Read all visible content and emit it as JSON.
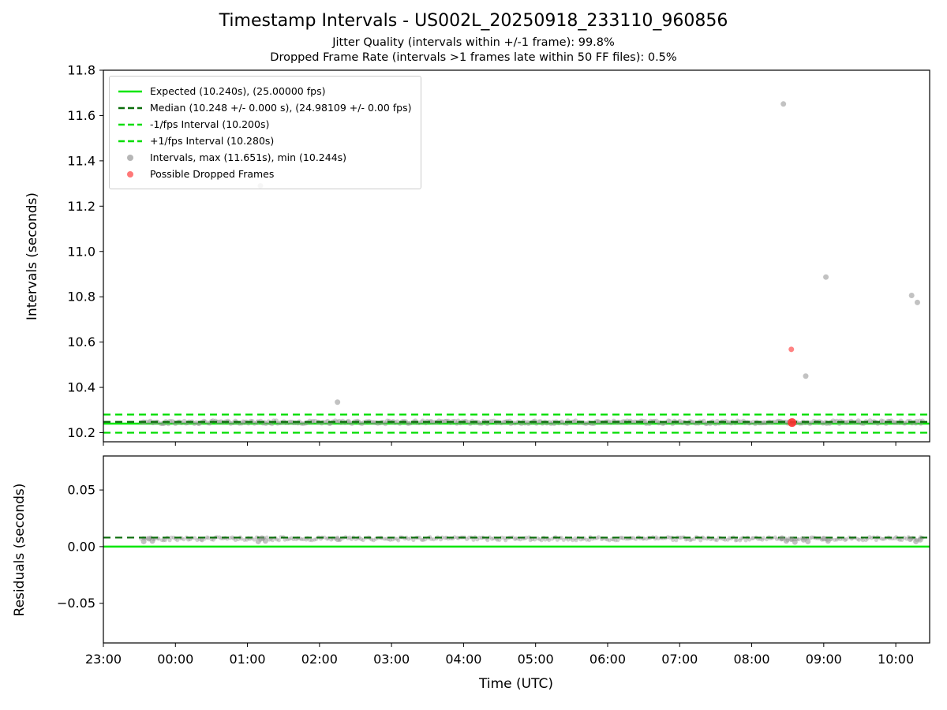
{
  "title": "Timestamp Intervals - US002L_20250918_233110_960856",
  "subtitles": {
    "jitter": "Jitter Quality (intervals within +/-1 frame): 99.8%",
    "dropped": "Dropped Frame Rate (intervals >1 frames late within 50 FF files): 0.5%"
  },
  "colors": {
    "expected_green": "#00e600",
    "fps_band_green": "#00dd00",
    "median_dark_green": "#0a6d0a",
    "interval_gray": "#8f8f8f",
    "dropped_red": "#ff3030"
  },
  "legend": [
    {
      "label": "Expected (10.240s), (25.00000 fps)",
      "swatch": "line-solid",
      "color": "#00e600"
    },
    {
      "label": "Median (10.248 +/- 0.000 s), (24.98109 +/- 0.00 fps)",
      "swatch": "line-dashed",
      "color": "#0a6d0a"
    },
    {
      "label": "-1/fps Interval (10.200s)",
      "swatch": "line-dashed",
      "color": "#00dd00"
    },
    {
      "label": "+1/fps Interval (10.280s)",
      "swatch": "line-dashed",
      "color": "#00dd00"
    },
    {
      "label": "Intervals, max (11.651s), min (10.244s)",
      "swatch": "dot",
      "color": "#8f8f8f"
    },
    {
      "label": "Possible Dropped Frames",
      "swatch": "dot",
      "color": "#ff3030"
    }
  ],
  "chart_data": [
    {
      "type": "scatter",
      "title": "Timestamp Intervals - US002L_20250918_233110_960856",
      "ylabel": "Intervals (seconds)",
      "ylim": [
        10.16,
        11.8
      ],
      "yticks": [
        {
          "v": 10.2,
          "label": "10.2"
        },
        {
          "v": 10.4,
          "label": "10.4"
        },
        {
          "v": 10.6,
          "label": "10.6"
        },
        {
          "v": 10.8,
          "label": "10.8"
        },
        {
          "v": 11.0,
          "label": "11.0"
        },
        {
          "v": 11.2,
          "label": "11.2"
        },
        {
          "v": 11.4,
          "label": "11.4"
        },
        {
          "v": 11.6,
          "label": "11.6"
        },
        {
          "v": 11.8,
          "label": "11.8"
        }
      ],
      "xlim": [
        0,
        11.47
      ],
      "xticks": [
        {
          "v": 0,
          "label": "23:00"
        },
        {
          "v": 1,
          "label": "00:00"
        },
        {
          "v": 2,
          "label": "01:00"
        },
        {
          "v": 3,
          "label": "02:00"
        },
        {
          "v": 4,
          "label": "03:00"
        },
        {
          "v": 5,
          "label": "04:00"
        },
        {
          "v": 6,
          "label": "05:00"
        },
        {
          "v": 7,
          "label": "06:00"
        },
        {
          "v": 8,
          "label": "07:00"
        },
        {
          "v": 9,
          "label": "08:00"
        },
        {
          "v": 10,
          "label": "09:00"
        },
        {
          "v": 11,
          "label": "10:00"
        }
      ],
      "show_xlabels": false,
      "ref_lines": [
        {
          "name": "expected",
          "y": 10.24,
          "style": "solid",
          "color": "#00e600",
          "w": 2.5,
          "z": 1
        },
        {
          "name": "minus-1fps",
          "y": 10.2,
          "style": "dashed",
          "color": "#00dd00",
          "w": 2.2,
          "z": 1
        },
        {
          "name": "plus-1fps",
          "y": 10.28,
          "style": "dashed",
          "color": "#00dd00",
          "w": 2.2,
          "z": 1
        },
        {
          "name": "median",
          "y": 10.248,
          "style": "dashed",
          "color": "#0a6d0a",
          "w": 2.2,
          "z": 2
        }
      ],
      "bands": [
        {
          "x0": 0.52,
          "x1": 11.38,
          "y": 10.246,
          "jitter": 0.007,
          "count": 400,
          "color": "#8f8f8f",
          "r": 3,
          "opacity": 0.4
        }
      ],
      "gray_points": [
        [
          2.18,
          11.29
        ],
        [
          3.25,
          10.335
        ],
        [
          9.44,
          11.651
        ],
        [
          9.75,
          10.45
        ],
        [
          10.03,
          10.887
        ],
        [
          11.22,
          10.806
        ],
        [
          11.3,
          10.775
        ]
      ],
      "red_points": [
        [
          9.55,
          10.568,
          3.5,
          0.6
        ],
        [
          9.56,
          10.245,
          5.5,
          0.9
        ]
      ],
      "stats": {
        "max_interval_s": 11.651,
        "min_interval_s": 10.244,
        "expected_s": 10.24,
        "expected_fps": 25.0,
        "median_s": 10.248,
        "median_fps": 24.98109,
        "minus_1fps_s": 10.2,
        "plus_1fps_s": 10.28
      }
    },
    {
      "type": "scatter",
      "ylabel": "Residuals (seconds)",
      "xlabel": "Time (UTC)",
      "ylim": [
        -0.085,
        0.08
      ],
      "yticks": [
        {
          "v": -0.05,
          "label": "−0.05"
        },
        {
          "v": 0.0,
          "label": "0.00"
        },
        {
          "v": 0.05,
          "label": "0.05"
        }
      ],
      "xlim": [
        0,
        11.47
      ],
      "xticks": [
        {
          "v": 0,
          "label": "23:00"
        },
        {
          "v": 1,
          "label": "00:00"
        },
        {
          "v": 2,
          "label": "01:00"
        },
        {
          "v": 3,
          "label": "02:00"
        },
        {
          "v": 4,
          "label": "03:00"
        },
        {
          "v": 5,
          "label": "04:00"
        },
        {
          "v": 6,
          "label": "05:00"
        },
        {
          "v": 7,
          "label": "06:00"
        },
        {
          "v": 8,
          "label": "07:00"
        },
        {
          "v": 9,
          "label": "08:00"
        },
        {
          "v": 10,
          "label": "09:00"
        },
        {
          "v": 11,
          "label": "10:00"
        }
      ],
      "show_xlabels": true,
      "ref_lines": [
        {
          "name": "expected-zero",
          "y": 0.0,
          "style": "solid",
          "color": "#00e600",
          "w": 2.5,
          "z": 1
        },
        {
          "name": "median-residual",
          "y": 0.008,
          "style": "dashed",
          "color": "#0a6d0a",
          "w": 2.2,
          "z": 2
        }
      ],
      "bands": [
        {
          "x0": 0.52,
          "x1": 11.38,
          "y": 0.007,
          "jitter": 0.0015,
          "count": 380,
          "color": "#8f8f8f",
          "r": 2.5,
          "opacity": 0.4
        }
      ],
      "gray_points": [
        [
          0.56,
          0.0045
        ],
        [
          0.63,
          0.007
        ],
        [
          0.68,
          0.005
        ],
        [
          2.15,
          0.0045
        ],
        [
          2.2,
          0.0075
        ],
        [
          2.25,
          0.005
        ],
        [
          3.25,
          0.0065
        ],
        [
          9.42,
          0.0075
        ],
        [
          9.48,
          0.005
        ],
        [
          9.55,
          0.0065
        ],
        [
          9.6,
          0.004
        ],
        [
          9.72,
          0.006
        ],
        [
          9.78,
          0.0045
        ],
        [
          10.0,
          0.007
        ],
        [
          10.06,
          0.005
        ],
        [
          11.2,
          0.0065
        ],
        [
          11.28,
          0.0045
        ],
        [
          11.34,
          0.006
        ]
      ],
      "red_points": []
    }
  ]
}
